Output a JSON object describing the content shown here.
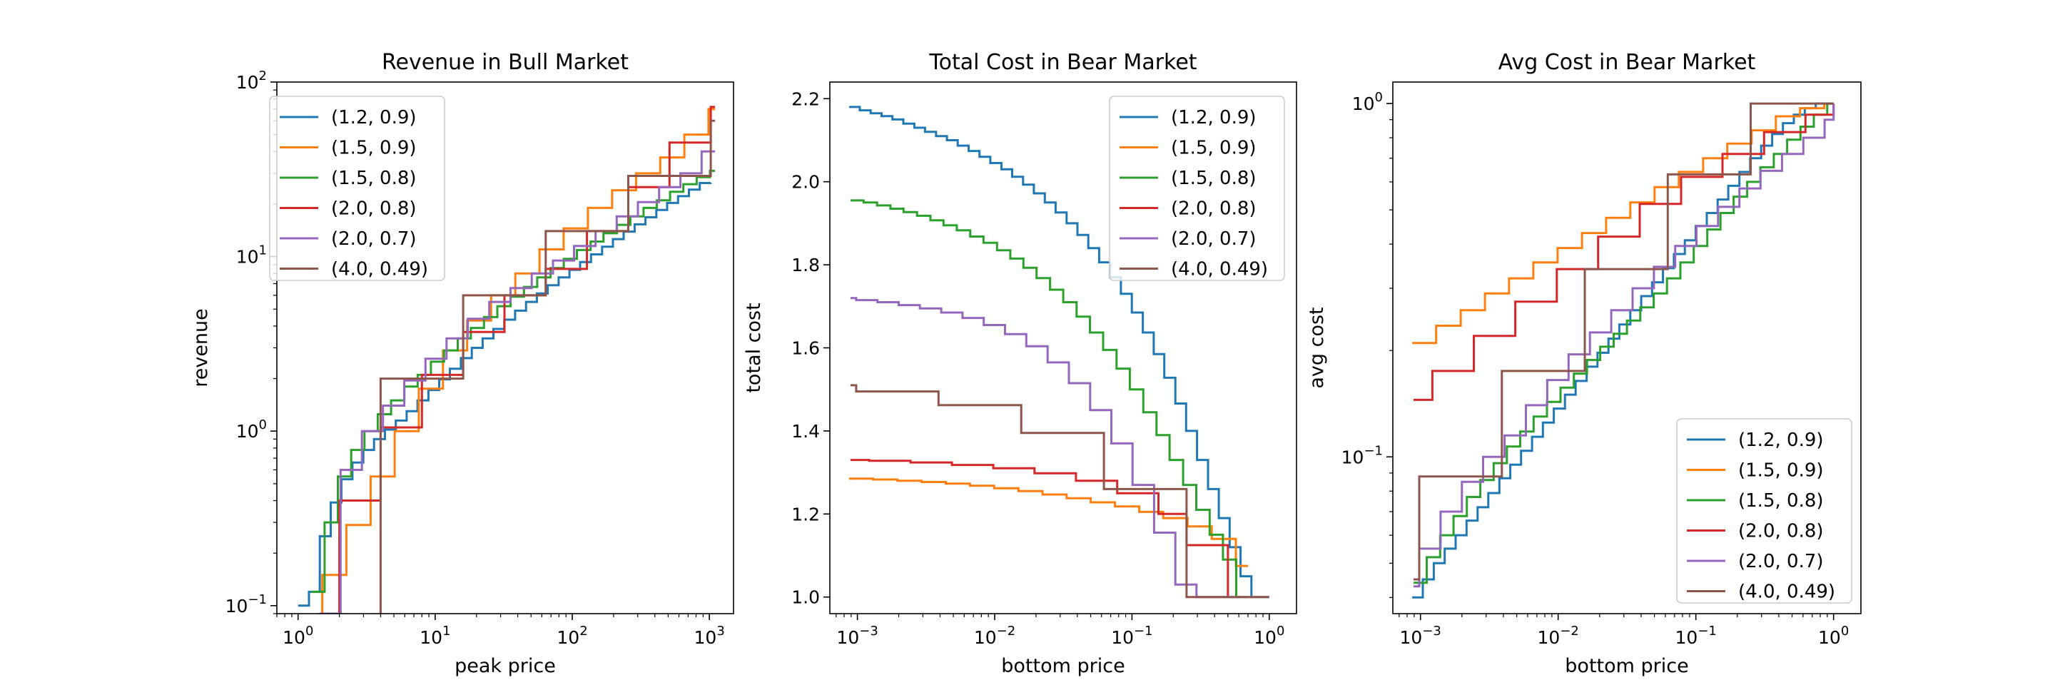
{
  "colors": {
    "(1.2, 0.9)": "#1f77b4",
    "(1.5, 0.9)": "#ff7f0e",
    "(1.5, 0.8)": "#2ca02c",
    "(2.0, 0.8)": "#d62728",
    "(2.0, 0.7)": "#9467bd",
    "(4.0, 0.49)": "#8c564b"
  },
  "chart_data": [
    {
      "type": "line",
      "step": true,
      "title": "Revenue in Bull Market",
      "xlabel": "peak price",
      "ylabel": "revenue",
      "xscale": "log",
      "yscale": "log",
      "xlim": [
        0.7,
        1500
      ],
      "ylim": [
        0.09,
        100
      ],
      "xticks": [
        1,
        10,
        100,
        1000
      ],
      "xtick_labels": [
        [
          "10",
          "0"
        ],
        [
          "10",
          "1"
        ],
        [
          "10",
          "2"
        ],
        [
          "10",
          "3"
        ]
      ],
      "yticks": [
        0.1,
        1,
        10,
        100
      ],
      "ytick_labels": [
        [
          "10",
          "−1"
        ],
        [
          "10",
          "0"
        ],
        [
          "10",
          "1"
        ],
        [
          "10",
          "2"
        ]
      ],
      "legend": "upper left",
      "series": [
        {
          "name": "(1.2, 0.9)",
          "x": [
            1,
            1.2,
            1.44,
            1.73,
            2.07,
            2.49,
            2.99,
            3.58,
            4.3,
            5.16,
            6.19,
            7.43,
            8.92,
            10.7,
            12.8,
            15.4,
            18.5,
            22.2,
            26.6,
            31.9,
            38.3,
            46,
            55.2,
            66.2,
            79.5,
            95.4,
            114,
            137,
            165,
            198,
            237,
            285,
            342,
            410,
            492,
            591,
            709,
            851,
            1020
          ],
          "y": [
            0.1,
            0.12,
            0.25,
            0.39,
            0.53,
            0.66,
            0.78,
            0.9,
            1.02,
            1.15,
            1.3,
            1.5,
            1.72,
            1.98,
            2.28,
            2.62,
            3.0,
            3.4,
            3.85,
            4.35,
            4.9,
            5.5,
            6.15,
            6.85,
            7.6,
            8.4,
            9.3,
            10.3,
            11.4,
            12.6,
            13.9,
            15.3,
            16.8,
            18.5,
            20.3,
            22.2,
            24.2,
            26.4,
            26.5
          ]
        },
        {
          "name": "(1.5, 0.9)",
          "x": [
            1.5,
            1.5,
            2.25,
            3.38,
            5.06,
            7.59,
            11.4,
            17.1,
            25.6,
            38.4,
            57.7,
            86.5,
            130,
            195,
            292,
            438,
            657,
            985,
            1100
          ],
          "y": [
            0.09,
            0.15,
            0.29,
            0.55,
            1.0,
            1.75,
            2.9,
            4.3,
            6.0,
            8.0,
            11.0,
            14.5,
            19.0,
            24.0,
            30.0,
            37.0,
            50.0,
            70.0,
            70.0
          ]
        },
        {
          "name": "(1.5, 0.8)",
          "x": [
            1.25,
            1.56,
            1.95,
            2.44,
            3.05,
            3.81,
            4.77,
            5.96,
            7.45,
            9.31,
            11.6,
            14.6,
            18.2,
            22.7,
            28.4,
            35.5,
            44.4,
            55.5,
            69.4,
            86.7,
            108,
            136,
            169,
            212,
            265,
            331,
            414,
            517,
            646,
            808,
            1010,
            1100
          ],
          "y": [
            0.12,
            0.3,
            0.55,
            0.78,
            1.0,
            1.25,
            1.5,
            1.8,
            2.1,
            2.5,
            2.9,
            3.4,
            3.9,
            4.5,
            5.2,
            5.9,
            6.7,
            7.6,
            8.6,
            9.7,
            10.9,
            12.2,
            13.6,
            15.2,
            17.0,
            19.0,
            21.0,
            23.5,
            26.0,
            28.5,
            31.0,
            31.0
          ]
        },
        {
          "name": "(2.0, 0.8)",
          "x": [
            1.56,
            2.0,
            4.0,
            8.0,
            16.0,
            32.0,
            64.0,
            128.0,
            256.0,
            512.0,
            1024.0,
            1100.0
          ],
          "y": [
            0.09,
            0.4,
            1.05,
            2.1,
            3.7,
            6.0,
            8.5,
            14.0,
            25.0,
            45.0,
            72.0,
            72.0
          ]
        },
        {
          "name": "(2.0, 0.7)",
          "x": [
            1.43,
            2.04,
            2.92,
            4.16,
            5.95,
            8.5,
            12.1,
            17.3,
            24.8,
            35.4,
            50.6,
            72.3,
            103,
            148,
            211,
            301,
            430,
            615,
            878,
            1100
          ],
          "y": [
            0.09,
            0.6,
            1.0,
            1.4,
            1.95,
            2.6,
            3.4,
            4.4,
            5.5,
            6.6,
            8.0,
            9.5,
            11.5,
            14.0,
            17.0,
            20.5,
            25.0,
            30.0,
            40.0,
            40.0
          ]
        },
        {
          "name": "(4.0, 0.49)",
          "x": [
            4.0,
            4.0,
            16.0,
            64.0,
            256.0,
            1024.0,
            1100.0
          ],
          "y": [
            0.09,
            2.0,
            6.0,
            14.0,
            29.0,
            60.0,
            60.0
          ]
        }
      ]
    },
    {
      "type": "line",
      "step": true,
      "title": "Total Cost in Bear Market",
      "xlabel": "bottom price",
      "ylabel": "total cost",
      "xscale": "log",
      "yscale": "linear",
      "xlim": [
        0.00063,
        1.58
      ],
      "ylim": [
        0.96,
        2.24
      ],
      "xticks": [
        0.001,
        0.01,
        0.1,
        1
      ],
      "xtick_labels": [
        [
          "10",
          "−3"
        ],
        [
          "10",
          "−2"
        ],
        [
          "10",
          "−1"
        ],
        [
          "10",
          "0"
        ]
      ],
      "yticks": [
        1.0,
        1.2,
        1.4,
        1.6,
        1.8,
        2.0,
        2.2
      ],
      "ytick_labels": [
        "1.0",
        "1.2",
        "1.4",
        "1.6",
        "1.8",
        "2.0",
        "2.2"
      ],
      "legend": "upper right",
      "series": [
        {
          "name": "(1.2, 0.9)",
          "x": [
            0.00087,
            0.00104,
            0.00125,
            0.0015,
            0.0018,
            0.00216,
            0.0026,
            0.00311,
            0.00374,
            0.00449,
            0.00538,
            0.00646,
            0.00775,
            0.0093,
            0.0112,
            0.0134,
            0.0161,
            0.0193,
            0.0232,
            0.0278,
            0.0334,
            0.0401,
            0.0481,
            0.0577,
            0.0693,
            0.0831,
            0.0998,
            0.12,
            0.144,
            0.172,
            0.207,
            0.248,
            0.298,
            0.358,
            0.429,
            0.515,
            0.618,
            0.742,
            0.89,
            1.0
          ],
          "y": [
            2.18,
            2.172,
            2.165,
            2.158,
            2.15,
            2.14,
            2.13,
            2.12,
            2.11,
            2.1,
            2.087,
            2.074,
            2.06,
            2.045,
            2.03,
            2.012,
            1.993,
            1.972,
            1.95,
            1.926,
            1.9,
            1.872,
            1.84,
            1.806,
            1.77,
            1.73,
            1.685,
            1.637,
            1.585,
            1.528,
            1.466,
            1.4,
            1.33,
            1.26,
            1.19,
            1.12,
            1.05,
            1.0,
            1.0,
            1.0
          ]
        },
        {
          "name": "(1.5, 0.9)",
          "x": [
            0.00087,
            0.0013,
            0.00196,
            0.00294,
            0.0044,
            0.0066,
            0.0099,
            0.0149,
            0.0223,
            0.0334,
            0.0501,
            0.0752,
            0.113,
            0.169,
            0.254,
            0.381,
            0.571,
            0.7
          ],
          "y": [
            1.285,
            1.283,
            1.28,
            1.277,
            1.273,
            1.268,
            1.262,
            1.255,
            1.247,
            1.238,
            1.228,
            1.218,
            1.205,
            1.19,
            1.17,
            1.14,
            1.075,
            1.075
          ]
        },
        {
          "name": "(1.5, 0.8)",
          "x": [
            0.00089,
            0.00111,
            0.00139,
            0.00174,
            0.00217,
            0.00272,
            0.0034,
            0.00424,
            0.0053,
            0.00663,
            0.00829,
            0.0104,
            0.013,
            0.0162,
            0.0202,
            0.0253,
            0.0316,
            0.0395,
            0.0494,
            0.0617,
            0.0772,
            0.0965,
            0.121,
            0.151,
            0.188,
            0.236,
            0.294,
            0.368,
            0.46,
            0.575,
            0.7
          ],
          "y": [
            1.955,
            1.95,
            1.943,
            1.935,
            1.927,
            1.918,
            1.907,
            1.895,
            1.883,
            1.868,
            1.853,
            1.835,
            1.815,
            1.793,
            1.768,
            1.74,
            1.71,
            1.675,
            1.637,
            1.595,
            1.55,
            1.5,
            1.445,
            1.39,
            1.33,
            1.27,
            1.21,
            1.15,
            1.09,
            1.0,
            1.0
          ]
        },
        {
          "name": "(2.0, 0.8)",
          "x": [
            0.00089,
            0.00122,
            0.00244,
            0.00488,
            0.00977,
            0.0195,
            0.0391,
            0.0781,
            0.156,
            0.25,
            0.5,
            0.5
          ],
          "y": [
            1.33,
            1.328,
            1.324,
            1.318,
            1.31,
            1.298,
            1.28,
            1.25,
            1.2,
            1.125,
            1.0,
            1.0
          ]
        },
        {
          "name": "(2.0, 0.7)",
          "x": [
            0.00089,
            0.00098,
            0.0014,
            0.002,
            0.00285,
            0.00408,
            0.00583,
            0.00833,
            0.0119,
            0.017,
            0.0243,
            0.0347,
            0.0496,
            0.0708,
            0.101,
            0.145,
            0.207,
            0.295,
            0.422,
            0.6
          ],
          "y": [
            1.72,
            1.715,
            1.71,
            1.703,
            1.695,
            1.685,
            1.672,
            1.655,
            1.633,
            1.604,
            1.565,
            1.515,
            1.45,
            1.37,
            1.27,
            1.155,
            1.03,
            1.0,
            1.0,
            1.0
          ]
        },
        {
          "name": "(4.0, 0.49)",
          "x": [
            0.00089,
            0.00098,
            0.0039,
            0.0156,
            0.0625,
            0.25,
            1.0
          ],
          "y": [
            1.51,
            1.495,
            1.462,
            1.395,
            1.26,
            1.0,
            1.0
          ]
        }
      ]
    },
    {
      "type": "line",
      "step": true,
      "title": "Avg Cost in Bear Market",
      "xlabel": "bottom price",
      "ylabel": "avg cost",
      "xscale": "log",
      "yscale": "log",
      "xlim": [
        0.00063,
        1.58
      ],
      "ylim": [
        0.036,
        1.15
      ],
      "xticks": [
        0.001,
        0.01,
        0.1,
        1
      ],
      "xtick_labels": [
        [
          "10",
          "−3"
        ],
        [
          "10",
          "−2"
        ],
        [
          "10",
          "−1"
        ],
        [
          "10",
          "0"
        ]
      ],
      "yticks": [
        0.1,
        1
      ],
      "ytick_labels": [
        [
          "10",
          "−1"
        ],
        [
          "10",
          "0"
        ]
      ],
      "legend": "lower right",
      "series": [
        {
          "name": "(1.2, 0.9)",
          "x": [
            0.00087,
            0.00104,
            0.00125,
            0.0015,
            0.0018,
            0.00216,
            0.0026,
            0.00311,
            0.00374,
            0.00449,
            0.00538,
            0.00646,
            0.00775,
            0.0093,
            0.0112,
            0.0134,
            0.0161,
            0.0193,
            0.0232,
            0.0278,
            0.0334,
            0.0401,
            0.0481,
            0.0577,
            0.0693,
            0.0831,
            0.0998,
            0.12,
            0.144,
            0.172,
            0.207,
            0.248,
            0.298,
            0.358,
            0.429,
            0.515,
            0.618,
            0.742,
            0.89,
            1.0
          ],
          "y": [
            0.04,
            0.045,
            0.05,
            0.055,
            0.06,
            0.066,
            0.072,
            0.079,
            0.087,
            0.095,
            0.104,
            0.114,
            0.125,
            0.137,
            0.15,
            0.164,
            0.18,
            0.197,
            0.216,
            0.237,
            0.26,
            0.285,
            0.312,
            0.342,
            0.375,
            0.41,
            0.45,
            0.49,
            0.535,
            0.585,
            0.64,
            0.7,
            0.76,
            0.82,
            0.88,
            0.93,
            0.97,
            1.0,
            1.0,
            1.0
          ]
        },
        {
          "name": "(1.5, 0.9)",
          "x": [
            0.00087,
            0.0013,
            0.00196,
            0.00294,
            0.0044,
            0.0066,
            0.0099,
            0.0149,
            0.0223,
            0.0334,
            0.0501,
            0.0752,
            0.113,
            0.169,
            0.254,
            0.381,
            0.571,
            0.857,
            1.0
          ],
          "y": [
            0.21,
            0.235,
            0.26,
            0.29,
            0.32,
            0.355,
            0.39,
            0.43,
            0.475,
            0.525,
            0.58,
            0.64,
            0.7,
            0.77,
            0.84,
            0.92,
            0.97,
            1.0,
            1.0
          ]
        },
        {
          "name": "(1.5, 0.8)",
          "x": [
            0.00089,
            0.00111,
            0.00139,
            0.00174,
            0.00217,
            0.00272,
            0.0034,
            0.00424,
            0.0053,
            0.00663,
            0.00829,
            0.0104,
            0.013,
            0.0162,
            0.0202,
            0.0253,
            0.0316,
            0.0395,
            0.0494,
            0.0617,
            0.0772,
            0.0965,
            0.121,
            0.151,
            0.188,
            0.236,
            0.294,
            0.368,
            0.46,
            0.575,
            0.719,
            0.9,
            1.0
          ],
          "y": [
            0.044,
            0.052,
            0.06,
            0.068,
            0.077,
            0.086,
            0.096,
            0.107,
            0.118,
            0.13,
            0.143,
            0.157,
            0.172,
            0.188,
            0.205,
            0.223,
            0.243,
            0.265,
            0.29,
            0.32,
            0.355,
            0.395,
            0.44,
            0.49,
            0.545,
            0.6,
            0.66,
            0.72,
            0.79,
            0.86,
            0.93,
            1.0,
            1.0
          ]
        },
        {
          "name": "(2.0, 0.8)",
          "x": [
            0.00089,
            0.00122,
            0.00244,
            0.00488,
            0.00977,
            0.0195,
            0.0391,
            0.0781,
            0.156,
            0.313,
            0.625,
            1.0
          ],
          "y": [
            0.145,
            0.175,
            0.22,
            0.275,
            0.34,
            0.42,
            0.52,
            0.62,
            0.72,
            0.83,
            0.93,
            1.0
          ]
        },
        {
          "name": "(2.0, 0.7)",
          "x": [
            0.00089,
            0.00098,
            0.0014,
            0.002,
            0.00285,
            0.00408,
            0.00583,
            0.00833,
            0.0119,
            0.017,
            0.0243,
            0.0347,
            0.0496,
            0.0708,
            0.101,
            0.145,
            0.207,
            0.295,
            0.422,
            0.603,
            0.861,
            1.0
          ],
          "y": [
            0.043,
            0.055,
            0.07,
            0.085,
            0.1,
            0.115,
            0.14,
            0.165,
            0.195,
            0.225,
            0.26,
            0.3,
            0.345,
            0.395,
            0.45,
            0.51,
            0.575,
            0.645,
            0.72,
            0.8,
            0.9,
            1.0
          ]
        },
        {
          "name": "(4.0, 0.49)",
          "x": [
            0.00089,
            0.00098,
            0.0039,
            0.0156,
            0.0625,
            0.25,
            1.0
          ],
          "y": [
            0.045,
            0.088,
            0.175,
            0.34,
            0.63,
            1.0,
            1.0
          ]
        }
      ]
    }
  ]
}
